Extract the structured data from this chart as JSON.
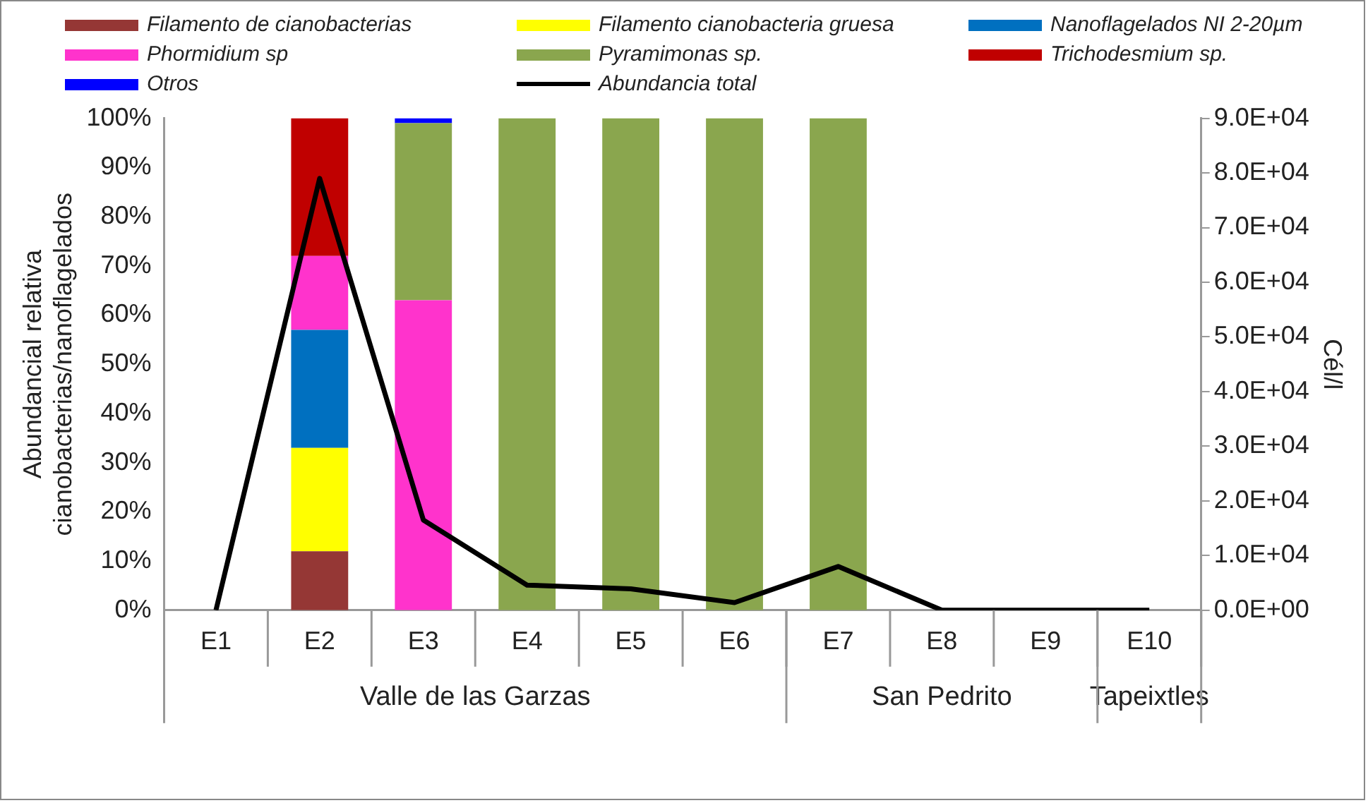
{
  "chart_data": {
    "type": "bar",
    "stacked": true,
    "categories": [
      "E1",
      "E2",
      "E3",
      "E4",
      "E5",
      "E6",
      "E7",
      "E8",
      "E9",
      "E10"
    ],
    "ylabel": "Abundancial relativa cianobacterias/nanoflagelados",
    "y2label": "Cél/l",
    "ylim": [
      0,
      100
    ],
    "yticks": [
      {
        "value": 0,
        "label": "0%"
      },
      {
        "value": 10,
        "label": "10%"
      },
      {
        "value": 20,
        "label": "20%"
      },
      {
        "value": 30,
        "label": "30%"
      },
      {
        "value": 40,
        "label": "40%"
      },
      {
        "value": 50,
        "label": "50%"
      },
      {
        "value": 60,
        "label": "60%"
      },
      {
        "value": 70,
        "label": "70%"
      },
      {
        "value": 80,
        "label": "80%"
      },
      {
        "value": 90,
        "label": "90%"
      },
      {
        "value": 100,
        "label": "100%"
      }
    ],
    "y2lim": [
      0,
      90000
    ],
    "y2ticks": [
      {
        "value": 0,
        "label": "0.0E+00"
      },
      {
        "value": 10000,
        "label": "1.0E+04"
      },
      {
        "value": 20000,
        "label": "2.0E+04"
      },
      {
        "value": 30000,
        "label": "3.0E+04"
      },
      {
        "value": 40000,
        "label": "4.0E+04"
      },
      {
        "value": 50000,
        "label": "5.0E+04"
      },
      {
        "value": 60000,
        "label": "6.0E+04"
      },
      {
        "value": 70000,
        "label": "7.0E+04"
      },
      {
        "value": 80000,
        "label": "8.0E+04"
      },
      {
        "value": 90000,
        "label": "9.0E+04"
      }
    ],
    "legend": "top",
    "grid": false,
    "annotations": [
      "Valle de las Garzas",
      "San Pedrito",
      "Tapeixtles"
    ],
    "series": [
      {
        "name": "Filamento de cianobacterias",
        "color": "#953735",
        "values": [
          0,
          12,
          0,
          0,
          0,
          0,
          0,
          0,
          0,
          0
        ]
      },
      {
        "name": "Filamento cianobacteria gruesa",
        "color": "#ffff00",
        "values": [
          0,
          21,
          0,
          0,
          0,
          0,
          0,
          0,
          0,
          0
        ]
      },
      {
        "name": "Nanoflagelados NI 2-20µm",
        "color": "#0070c0",
        "values": [
          0,
          24,
          0,
          0,
          0,
          0,
          0,
          0,
          0,
          0
        ]
      },
      {
        "name": "Phormidium sp",
        "color": "#ff33cc",
        "values": [
          0,
          15,
          63,
          0,
          0,
          0,
          0,
          0,
          0,
          0
        ]
      },
      {
        "name": "Pyramimonas sp.",
        "color": "#8aa64e",
        "values": [
          0,
          0,
          36,
          100,
          100,
          100,
          100,
          0,
          0,
          0
        ]
      },
      {
        "name": "Trichodesmium sp.",
        "color": "#c00000",
        "values": [
          0,
          28,
          0,
          0,
          0,
          0,
          0,
          0,
          0,
          0
        ]
      },
      {
        "name": "Otros",
        "color": "#0000ff",
        "values": [
          0,
          0,
          1,
          0,
          0,
          0,
          0,
          0,
          0,
          0
        ]
      },
      {
        "name": "Abundancia total",
        "color": "#000000",
        "type": "line",
        "axis": "y2",
        "marker": "none",
        "values": [
          0,
          79000,
          16500,
          4600,
          3900,
          1400,
          8000,
          0,
          0,
          0
        ]
      }
    ]
  }
}
